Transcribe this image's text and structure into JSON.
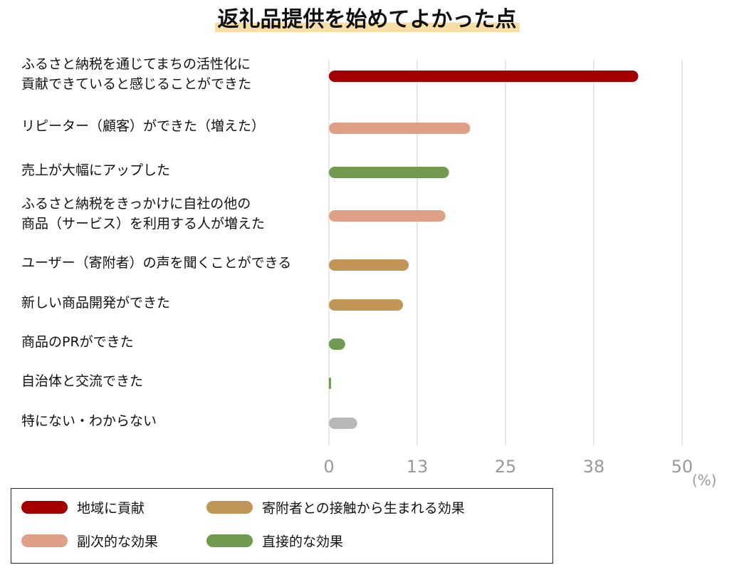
{
  "chart_data": {
    "type": "bar",
    "orientation": "horizontal",
    "title": "返礼品提供を始めてよかった点",
    "categories": [
      "ふるさと納税を通じてまちの活性化に\n貢献できていると感じることができた",
      "リピーター（顧客）ができた（増えた）",
      "売上が大幅にアップした",
      "ふるさと納税をきっかけに自社の他の\n商品（サービス）を利用する人が増えた",
      "ユーザー（寄附者）の声を聞くことができる",
      "新しい商品開発ができた",
      "商品のPRができた",
      "自治体と交流できた",
      "特にない・わからない"
    ],
    "values": [
      43.8,
      20,
      17,
      16.5,
      11.3,
      10.5,
      2.3,
      0.3,
      4
    ],
    "colors": [
      "#a50000",
      "#e0a088",
      "#6f9a50",
      "#e0a088",
      "#c09555",
      "#c09555",
      "#6f9a50",
      "#6f9a50",
      "#b8b8b8"
    ],
    "xlim": [
      0,
      50
    ],
    "xticks": [
      0,
      {
        "value": 12.5,
        "label": "13"
      },
      25,
      {
        "value": 37.5,
        "label": "38"
      },
      50
    ],
    "xlabel": "(%)",
    "grid": true,
    "legend": [
      {
        "name": "地域に貢献",
        "color": "#a50000"
      },
      {
        "name": "寄附者との接触から生まれる効果",
        "color": "#c09555"
      },
      {
        "name": "副次的な効果",
        "color": "#e0a088"
      },
      {
        "name": "直接的な効果",
        "color": "#6f9a50"
      }
    ]
  }
}
